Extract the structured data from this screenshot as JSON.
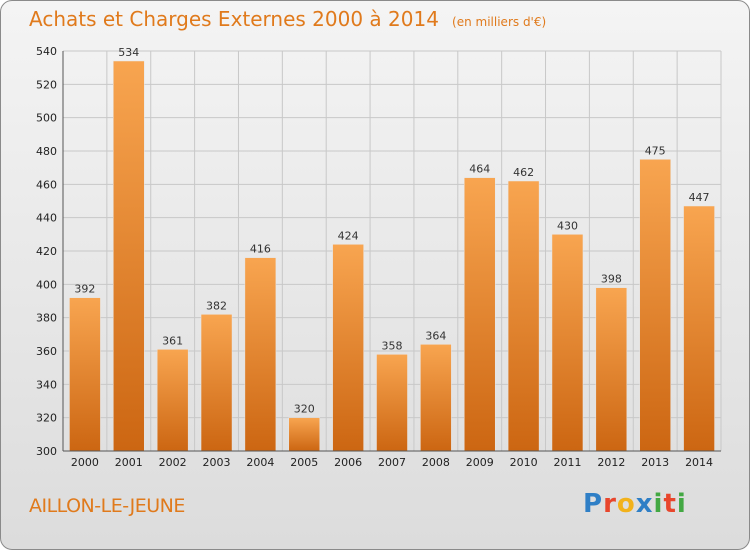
{
  "title": {
    "main": "Achats et Charges Externes 2000 à 2014",
    "unit": "(en milliers d'€)"
  },
  "commune": "AILLON-LE-JEUNE",
  "logo": {
    "text": "Proxiti",
    "letters": [
      "P",
      "r",
      "o",
      "x",
      "i",
      "t",
      "i"
    ],
    "colors": [
      "#2f7fc6",
      "#e8462c",
      "#f2b21b",
      "#2f7fc6",
      "#43a843",
      "#e8462c",
      "#43a843"
    ]
  },
  "colors": {
    "title": "#e07a1c",
    "bar_light": "#f8a550",
    "bar_dark": "#cc6612",
    "grid": "#c8c8c8",
    "axis_text": "#222222",
    "label_text": "#333333"
  },
  "chart_data": {
    "type": "bar",
    "title": "Achats et Charges Externes 2000 à 2014",
    "subtitle": "(en milliers d'€)",
    "xlabel": "",
    "ylabel": "",
    "categories": [
      "2000",
      "2001",
      "2002",
      "2003",
      "2004",
      "2005",
      "2006",
      "2007",
      "2008",
      "2009",
      "2010",
      "2011",
      "2012",
      "2013",
      "2014"
    ],
    "values": [
      392,
      534,
      361,
      382,
      416,
      320,
      424,
      358,
      364,
      464,
      462,
      430,
      398,
      475,
      447
    ],
    "ylim": [
      300,
      540
    ],
    "yticks": [
      300,
      320,
      340,
      360,
      380,
      400,
      420,
      440,
      460,
      480,
      500,
      520,
      540
    ],
    "grid": true,
    "legend": "none",
    "data_labels": true
  }
}
